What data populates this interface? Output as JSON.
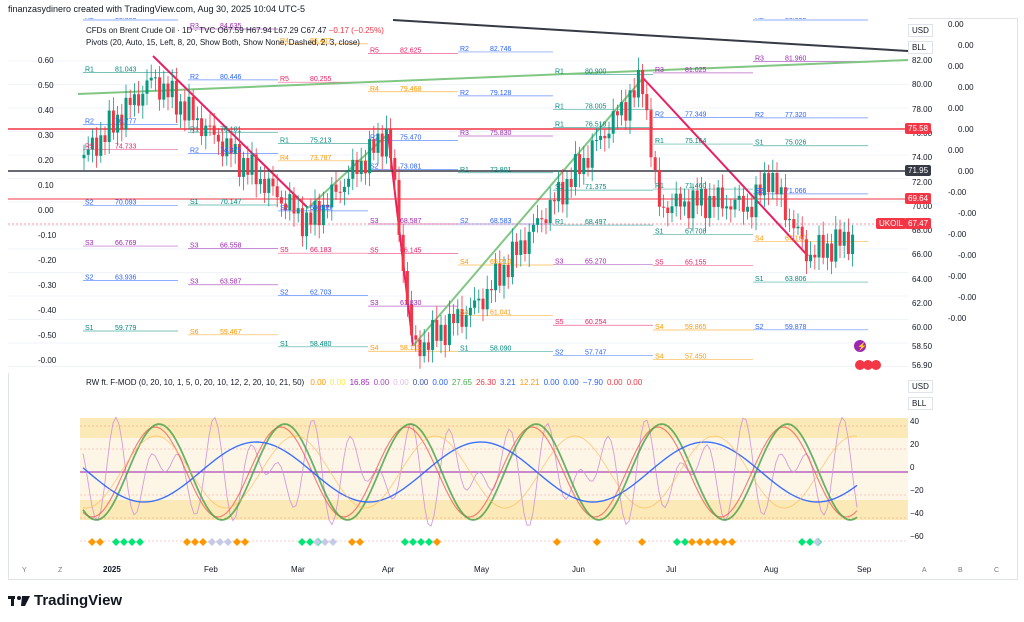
{
  "credit": "finanzasydinero created with TradingView.com, Aug 30, 2025 10:04 UTC-5",
  "header": {
    "symbol_line": "CFDs on Brent Crude Oil · 1D · TVC",
    "ohlc_o": "O67.59",
    "ohlc_h": "H67.94",
    "ohlc_l": "L67.29",
    "ohlc_c": "C67.47",
    "change": "−0.17 (−0.25%)",
    "pivots_line": "Pivots (20, Auto, 15, Left, 8, 20, Show Both, Show None, Dashed, 2, 3, close)"
  },
  "price_scale": {
    "currency": "USD",
    "unit": "BLL",
    "labels": [
      "82.00",
      "80.00",
      "78.00",
      "76.00",
      "74.00",
      "72.00",
      "70.00",
      "68.00",
      "66.00",
      "64.00",
      "62.00",
      "60.00",
      "58.50",
      "56.90"
    ],
    "right_labels": [
      "0.00",
      "0.00",
      "0.00",
      "0.00",
      "0.00",
      "0.00",
      "0.00",
      "0.00",
      "-0.00",
      "-0.00",
      "-0.00",
      "-0.00",
      "-0.00",
      "-0.00",
      "-0.00"
    ],
    "left_labels": [
      "0.60",
      "0.50",
      "0.40",
      "0.30",
      "0.20",
      "0.10",
      "0.00",
      "-0.10",
      "-0.20",
      "-0.30",
      "-0.40",
      "-0.50",
      "-0.00"
    ],
    "tags": [
      {
        "text": "75.58",
        "color": "#f23645"
      },
      {
        "text": "71.95",
        "color": "#363a45"
      },
      {
        "text": "69.64",
        "color": "#f23645"
      },
      {
        "text": "UKOIL",
        "color": "#f23645"
      },
      {
        "text": "67.47",
        "color": "#f23645"
      }
    ],
    "symbol_tag": "UKOIL"
  },
  "oscillator": {
    "title": "RW ft. F-MOD (0, 20, 10, 1, 5, 0, 20, 10, 12, 2, 20, 10, 21, 50)",
    "values": [
      {
        "text": "0.00",
        "color": "#ff9800"
      },
      {
        "text": "0.00",
        "color": "#ffeb3b"
      },
      {
        "text": "16.85",
        "color": "#9c27b0"
      },
      {
        "text": "0.00",
        "color": "#ab47bc"
      },
      {
        "text": "0.00",
        "color": "#e1bee7"
      },
      {
        "text": "0.00",
        "color": "#3f51b5"
      },
      {
        "text": "0.00",
        "color": "#2962ff"
      },
      {
        "text": "27.65",
        "color": "#4caf50"
      },
      {
        "text": "26.30",
        "color": "#f23645"
      },
      {
        "text": "3.21",
        "color": "#2962ff"
      },
      {
        "text": "12.21",
        "color": "#ff9800"
      },
      {
        "text": "0.00",
        "color": "#2962ff"
      },
      {
        "text": "0.00",
        "color": "#2962ff"
      },
      {
        "text": "−7.90",
        "color": "#2962ff"
      },
      {
        "text": "0.00",
        "color": "#f23645"
      },
      {
        "text": "0.00",
        "color": "#f23645"
      }
    ],
    "currency": "USD",
    "unit": "BLL",
    "scale": [
      "40",
      "20",
      "0",
      "−20",
      "−40",
      "−60"
    ]
  },
  "time_axis": [
    "2025",
    "Feb",
    "Mar",
    "Apr",
    "May",
    "Jun",
    "Jul",
    "Aug",
    "Sep"
  ],
  "corner_buttons": [
    "Y",
    "Z",
    "A",
    "B",
    "C"
  ],
  "levels": [
    {
      "t": "R2",
      "v": "85.553"
    },
    {
      "t": "R3",
      "v": "84.635"
    },
    {
      "t": "R4",
      "v": "83.407"
    },
    {
      "t": "R5",
      "v": "82.625"
    },
    {
      "t": "R2",
      "v": "82.746"
    },
    {
      "t": "R1",
      "v": "80.900"
    },
    {
      "t": "R3",
      "v": "81.025"
    },
    {
      "t": "R3",
      "v": "81.960"
    },
    {
      "t": "R1",
      "v": "81.043"
    },
    {
      "t": "R2",
      "v": "80.446"
    },
    {
      "t": "R5",
      "v": "80.255"
    },
    {
      "t": "R4",
      "v": "79.468"
    },
    {
      "t": "R2",
      "v": "79.128"
    },
    {
      "t": "R1",
      "v": "78.005"
    },
    {
      "t": "R2",
      "v": "77.349"
    },
    {
      "t": "R2",
      "v": "77.320"
    },
    {
      "t": "R2",
      "v": "76.777"
    },
    {
      "t": "R1",
      "v": "76.101"
    },
    {
      "t": "R1",
      "v": "75.213"
    },
    {
      "t": "R2",
      "v": "75.470"
    },
    {
      "t": "R3",
      "v": "75.830"
    },
    {
      "t": "R1",
      "v": "76.518"
    },
    {
      "t": "R1",
      "v": "75.164"
    },
    {
      "t": "S1",
      "v": "75.026"
    },
    {
      "t": "R5",
      "v": "74.733"
    },
    {
      "t": "R2",
      "v": "74.375"
    },
    {
      "t": "R4",
      "v": "73.787"
    },
    {
      "t": "S2",
      "v": "73.081"
    },
    {
      "t": "R1",
      "v": "72.801"
    },
    {
      "t": "S1",
      "v": "71.375"
    },
    {
      "t": "R1",
      "v": "71.460"
    },
    {
      "t": "S2",
      "v": "71.066"
    },
    {
      "t": "S2",
      "v": "70.093"
    },
    {
      "t": "S1",
      "v": "70.147"
    },
    {
      "t": "S2",
      "v": "69.665"
    },
    {
      "t": "S3",
      "v": "68.587"
    },
    {
      "t": "S2",
      "v": "68.583"
    },
    {
      "t": "R1",
      "v": "68.497"
    },
    {
      "t": "S1",
      "v": "67.708"
    },
    {
      "t": "S4",
      "v": "67.160"
    },
    {
      "t": "S3",
      "v": "66.769"
    },
    {
      "t": "S3",
      "v": "66.558"
    },
    {
      "t": "S5",
      "v": "66.183"
    },
    {
      "t": "S5",
      "v": "66.145"
    },
    {
      "t": "S4",
      "v": "65.210"
    },
    {
      "t": "S3",
      "v": "65.270"
    },
    {
      "t": "S5",
      "v": "65.155"
    },
    {
      "t": "S1",
      "v": "63.806"
    },
    {
      "t": "S2",
      "v": "63.936"
    },
    {
      "t": "S3",
      "v": "63.587"
    },
    {
      "t": "S2",
      "v": "62.703"
    },
    {
      "t": "S3",
      "v": "61.830"
    },
    {
      "t": "S4",
      "v": "61.041"
    },
    {
      "t": "S5",
      "v": "60.254"
    },
    {
      "t": "S4",
      "v": "59.865"
    },
    {
      "t": "S2",
      "v": "59.878"
    },
    {
      "t": "S1",
      "v": "59.779"
    },
    {
      "t": "S6",
      "v": "59.467"
    },
    {
      "t": "S1",
      "v": "58.480"
    },
    {
      "t": "S4",
      "v": "58.115"
    },
    {
      "t": "S1",
      "v": "58.090"
    },
    {
      "t": "S2",
      "v": "57.747"
    },
    {
      "t": "S4",
      "v": "57.450"
    },
    {
      "t": "R2",
      "v": "85.855"
    }
  ],
  "brand": "TradingView"
}
